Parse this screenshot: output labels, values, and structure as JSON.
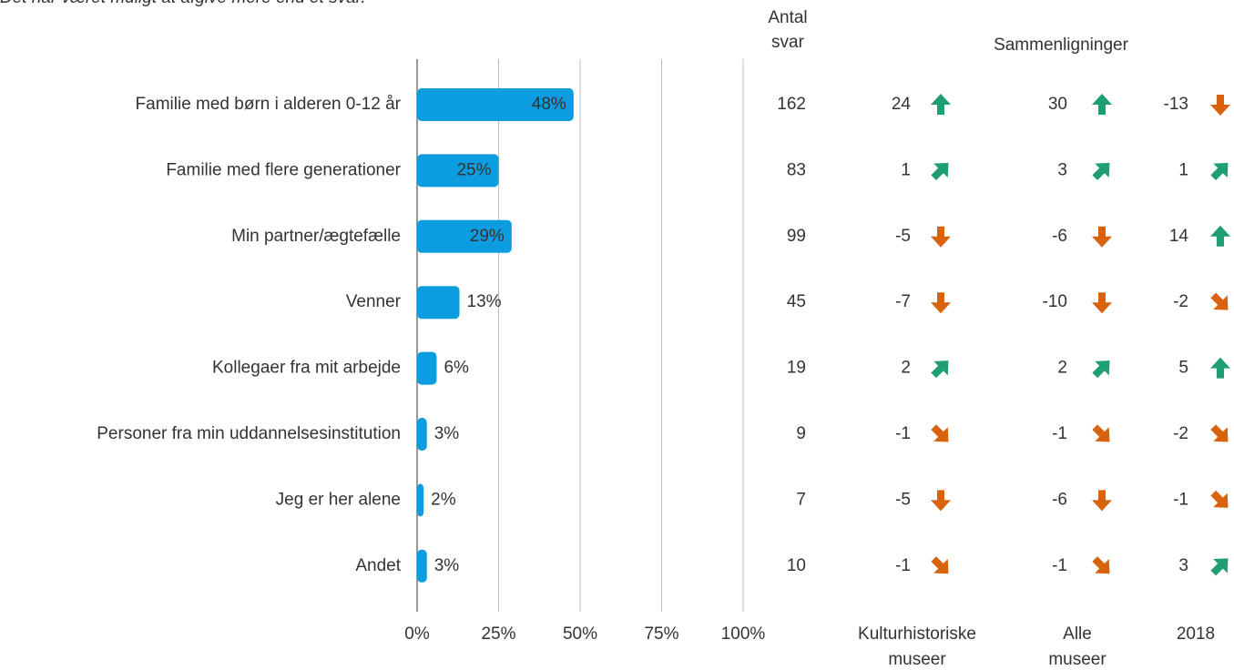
{
  "note": "Det har været muligt at afgive mere end et svar.",
  "chart_data": {
    "type": "bar",
    "orientation": "horizontal",
    "color": "#0b9de0",
    "categories": [
      "Familie med børn i alderen 0-12 år",
      "Familie med flere generationer",
      "Min partner/ægtefælle",
      "Venner",
      "Kollegaer fra mit arbejde",
      "Personer fra min uddannelsesinstitution",
      "Jeg er her alene",
      "Andet"
    ],
    "values": [
      48,
      25,
      29,
      13,
      6,
      3,
      2,
      3
    ],
    "value_labels": [
      "48%",
      "25%",
      "29%",
      "13%",
      "6%",
      "3%",
      "2%",
      "3%"
    ],
    "xlim": [
      0,
      100
    ],
    "xticks": [
      {
        "value": 0,
        "label": "0%"
      },
      {
        "value": 25,
        "label": "25%"
      },
      {
        "value": 50,
        "label": "50%"
      },
      {
        "value": 75,
        "label": "75%"
      },
      {
        "value": 100,
        "label": "100%"
      }
    ],
    "grid": true
  },
  "count_column": {
    "header": "Antal svar",
    "values": [
      162,
      83,
      99,
      45,
      19,
      9,
      7,
      10
    ]
  },
  "comparisons": {
    "header": "Sammenligninger",
    "up_color": "#1f9e75",
    "down_color": "#d9620d",
    "columns": [
      {
        "name": "Kulturhistoriske museer",
        "values": [
          24,
          1,
          -5,
          -7,
          2,
          -1,
          -5,
          -1
        ]
      },
      {
        "name": "Alle museer",
        "values": [
          30,
          3,
          -6,
          -10,
          2,
          -1,
          -6,
          -1
        ]
      },
      {
        "name": "2018",
        "values": [
          -13,
          1,
          14,
          -2,
          5,
          -2,
          -1,
          3
        ]
      }
    ]
  }
}
